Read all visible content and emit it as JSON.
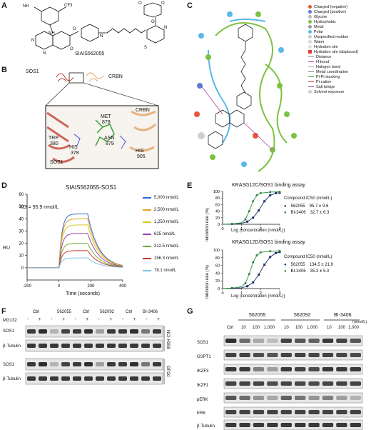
{
  "panels": {
    "A": {
      "label": "A",
      "compound_name": "SIAIS562055",
      "atoms": [
        "CF3",
        "NH",
        "N",
        "N",
        "O",
        "N",
        "O",
        "N",
        "O",
        "S",
        "H",
        "N",
        "O",
        "O"
      ]
    },
    "B": {
      "label": "B",
      "sos1": "SOS1",
      "crbn": "CRBN",
      "residues": [
        {
          "name": "MET",
          "num": "878"
        },
        {
          "name": "ASN",
          "num": "879"
        },
        {
          "name": "TRP",
          "num": "380"
        },
        {
          "name": "HIS",
          "num": "378"
        },
        {
          "name": "HIS",
          "num": "905"
        }
      ],
      "inset_sos1": "SOS1",
      "inset_crbn": "CRBN"
    },
    "C": {
      "label": "C",
      "legend": [
        {
          "text": "Charged (negative)",
          "color": "#e8553b"
        },
        {
          "text": "Charged (positive)",
          "color": "#5a7bd6"
        },
        {
          "text": "Glycine",
          "color": "#bdbdbd"
        },
        {
          "text": "Hydrophobic",
          "color": "#7cc242"
        },
        {
          "text": "Metal",
          "color": "#9b9b9b"
        },
        {
          "text": "Polar",
          "color": "#58b8e8"
        },
        {
          "text": "Unspecified residue",
          "color": "#cccccc"
        },
        {
          "text": "Water",
          "color": "#d8d8d8"
        },
        {
          "text": "Hydration site",
          "color": "#e0e0e0"
        },
        {
          "text": "Hydration site (displaced)",
          "color": "#e03a3a"
        },
        {
          "text": "Distance",
          "color": "#999999"
        },
        {
          "text": "H-bond",
          "color": "#b53c9b"
        },
        {
          "text": "Halogen bond",
          "color": "#c9a0dc"
        },
        {
          "text": "Metal coordination",
          "color": "#888888"
        },
        {
          "text": "Pi-Pi stacking",
          "color": "#3c9b3c"
        },
        {
          "text": "Pi-cation",
          "color": "#e03a3a"
        },
        {
          "text": "Salt bridge",
          "color": "#8e44ad"
        },
        {
          "text": "Solvent exposure",
          "color": "#cfcfcf"
        }
      ]
    },
    "D": {
      "label": "D",
      "title": "SIAIS562055-SOS1",
      "kd": "KD = 95.9 nmol/L",
      "ylabel": "RU",
      "xlabel": "Time (seconds)"
    },
    "E": {
      "label": "E",
      "ylabel": "Inhibition rate (%)",
      "xlabel": "Log (concentration (nmol/L))",
      "compound_header": "Compound IC50 (nmol/L)",
      "top": {
        "title": "KRASG12C/SOS1 binding assay",
        "rows": [
          {
            "name": "562055",
            "value": "95.7 ± 9.6"
          },
          {
            "name": "BI-3406",
            "value": "32.7 ± 6.3"
          }
        ]
      },
      "bottom": {
        "title": "KRASG12D/SOS1 binding assay",
        "rows": [
          {
            "name": "562055",
            "value": "134.5 ± 21.9"
          },
          {
            "name": "BI-3406",
            "value": "35.3 ± 5.0"
          }
        ]
      }
    },
    "F": {
      "label": "F",
      "groups": [
        "Ctrl",
        "562055",
        "Ctrl",
        "562092",
        "Ctrl",
        "BI-3406"
      ],
      "mg132": "MG132",
      "signs": [
        "-",
        "+",
        "-",
        "+",
        "-",
        "+",
        "-",
        "+",
        "-",
        "+",
        "-",
        "+"
      ],
      "rows": [
        "SOS1",
        "β-Tubulin",
        "SOS1",
        "β-Tubulin"
      ],
      "cell_lines": [
        "NCI-H358",
        "GP2d"
      ]
    },
    "G": {
      "label": "G",
      "groups": [
        "562055",
        "562092",
        "BI-3406"
      ],
      "ctrl": "Ctrl",
      "doses": [
        "10",
        "100",
        "1,000",
        "10",
        "100",
        "1,000",
        "10",
        "100",
        "1,000"
      ],
      "unit": "(nmol/L)",
      "rows": [
        "SOS1",
        "GSPT1",
        "IKZF3",
        "IKZF1",
        "pERK",
        "ERK",
        "β-Tubulin"
      ]
    }
  },
  "chart_data": [
    {
      "type": "line",
      "title": "SIAIS562055-SOS1",
      "xlabel": "Time (seconds)",
      "ylabel": "RU",
      "xlim": [
        -200,
        400
      ],
      "ylim": [
        -10,
        60
      ],
      "xticks": [
        "-200",
        "0",
        "200",
        "400"
      ],
      "yticks": [
        "0",
        "10",
        "20",
        "30",
        "40",
        "50",
        "60"
      ],
      "series": [
        {
          "name": "5,000 nmol/L",
          "color": "#2c6bd6",
          "plateau": 44
        },
        {
          "name": "2,500 nmol/L",
          "color": "#e8a020",
          "plateau": 40
        },
        {
          "name": "1,250 nmol/L",
          "color": "#d9c82a",
          "plateau": 35
        },
        {
          "name": "625 nmol/L",
          "color": "#9b3fb0",
          "plateau": 28
        },
        {
          "name": "312.5 nmol/L",
          "color": "#6fae3a",
          "plateau": 20
        },
        {
          "name": "156.3 nmol/L",
          "color": "#c0392b",
          "plateau": 14
        },
        {
          "name": "78.1 nmol/L",
          "color": "#7cc4e8",
          "plateau": 8
        }
      ]
    },
    {
      "type": "scatter",
      "title": "KRASG12C/SOS1 binding assay",
      "xlabel": "Log (concentration (nmol/L))",
      "ylabel": "Inhibition rate (%)",
      "xlim": [
        0,
        3
      ],
      "ylim": [
        0,
        100
      ],
      "xticks": [
        "0",
        "1",
        "2",
        "3"
      ],
      "yticks": [
        "0",
        "20",
        "40",
        "60",
        "80",
        "100"
      ],
      "series": [
        {
          "name": "562055",
          "color": "#1e2d6b",
          "x": [
            0.0,
            0.5,
            1.0,
            1.3,
            1.6,
            1.9,
            2.2,
            2.5,
            2.8,
            3.0
          ],
          "y": [
            0,
            1,
            3,
            8,
            20,
            42,
            70,
            88,
            95,
            96
          ]
        },
        {
          "name": "BI-3406",
          "color": "#2e8b3e",
          "x": [
            0.0,
            0.5,
            1.0,
            1.2,
            1.4,
            1.6,
            1.8,
            2.0,
            2.5,
            3.0
          ],
          "y": [
            0,
            1,
            5,
            15,
            40,
            70,
            88,
            95,
            98,
            99
          ]
        }
      ]
    },
    {
      "type": "scatter",
      "title": "KRASG12D/SOS1 binding assay",
      "xlabel": "Log (concentration (nmol/L))",
      "ylabel": "Inhibition rate (%)",
      "xlim": [
        0,
        3
      ],
      "ylim": [
        0,
        100
      ],
      "xticks": [
        "0",
        "1",
        "2",
        "3"
      ],
      "yticks": [
        "0",
        "20",
        "40",
        "60",
        "80",
        "100"
      ],
      "series": [
        {
          "name": "562055",
          "color": "#1e2d6b",
          "x": [
            0.0,
            0.5,
            1.0,
            1.3,
            1.6,
            1.9,
            2.2,
            2.5,
            2.8,
            3.0
          ],
          "y": [
            0,
            1,
            2,
            6,
            16,
            36,
            62,
            82,
            92,
            95
          ]
        },
        {
          "name": "BI-3406",
          "color": "#2e8b3e",
          "x": [
            0.0,
            0.5,
            1.0,
            1.2,
            1.4,
            1.6,
            1.8,
            2.0,
            2.5,
            3.0
          ],
          "y": [
            0,
            1,
            5,
            14,
            38,
            68,
            86,
            94,
            97,
            98
          ]
        }
      ]
    }
  ]
}
